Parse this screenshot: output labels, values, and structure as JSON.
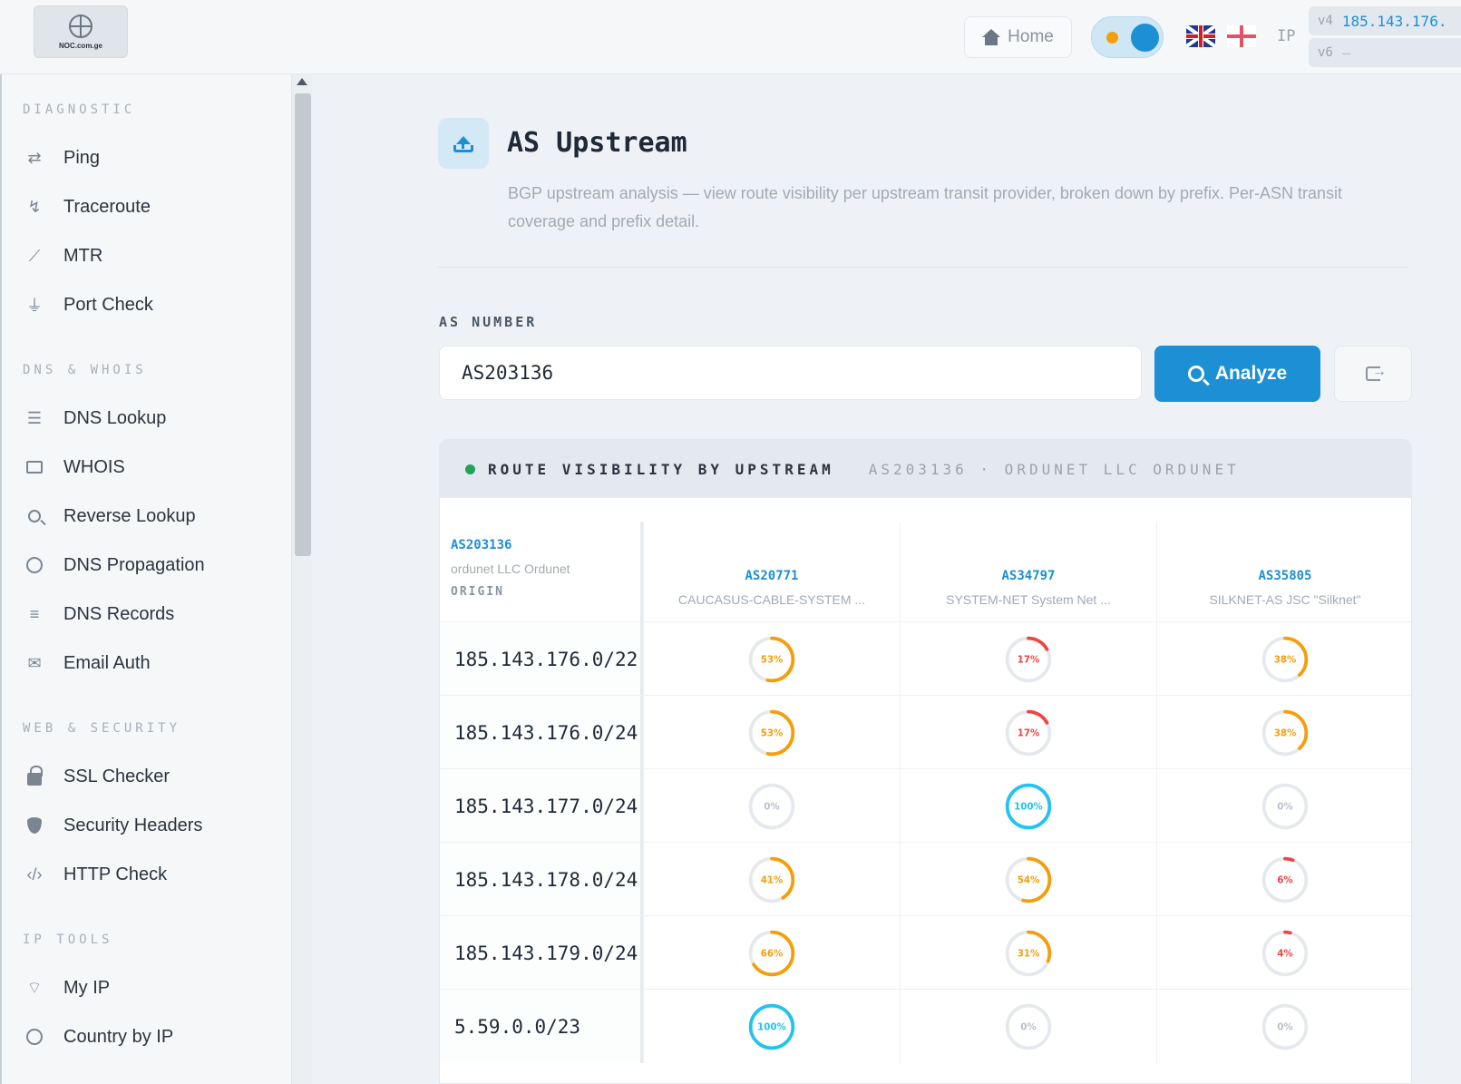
{
  "header": {
    "logo_text": "NOC.com.ge",
    "home_label": "Home",
    "ip_label": "IP",
    "ipv4_tag": "v4",
    "ipv4_value": "185.143.176.",
    "ipv6_tag": "v6",
    "ipv6_value": "—"
  },
  "sidebar": {
    "sections": [
      {
        "title": "DIAGNOSTIC",
        "items": [
          {
            "label": "Ping",
            "icon": "ping-icon"
          },
          {
            "label": "Traceroute",
            "icon": "traceroute-icon"
          },
          {
            "label": "MTR",
            "icon": "chart-line-icon"
          },
          {
            "label": "Port Check",
            "icon": "plug-icon"
          }
        ]
      },
      {
        "title": "DNS & WHOIS",
        "items": [
          {
            "label": "DNS Lookup",
            "icon": "server-icon"
          },
          {
            "label": "WHOIS",
            "icon": "id-card-icon"
          },
          {
            "label": "Reverse Lookup",
            "icon": "search-icon"
          },
          {
            "label": "DNS Propagation",
            "icon": "globe-icon"
          },
          {
            "label": "DNS Records",
            "icon": "list-icon"
          },
          {
            "label": "Email Auth",
            "icon": "envelope-icon"
          }
        ]
      },
      {
        "title": "WEB & SECURITY",
        "items": [
          {
            "label": "SSL Checker",
            "icon": "lock-icon"
          },
          {
            "label": "Security Headers",
            "icon": "shield-icon"
          },
          {
            "label": "HTTP Check",
            "icon": "code-icon"
          }
        ]
      },
      {
        "title": "IP TOOLS",
        "items": [
          {
            "label": "My IP",
            "icon": "wifi-icon"
          },
          {
            "label": "Country by IP",
            "icon": "globe-icon"
          }
        ]
      }
    ]
  },
  "main": {
    "title": "AS Upstream",
    "description": "BGP upstream analysis — view route visibility per upstream transit provider, broken down by prefix. Per-ASN transit coverage and prefix detail.",
    "field_label": "AS NUMBER",
    "as_value": "AS203136",
    "analyze_label": "Analyze"
  },
  "panel": {
    "title": "ROUTE VISIBILITY BY UPSTREAM",
    "subtitle": "AS203136 · ORDUNET LLC ORDUNET",
    "origin": {
      "asn": "AS203136",
      "name": "ordunet LLC Ordunet",
      "label": "ORIGIN"
    },
    "upstreams": [
      {
        "asn": "AS20771",
        "name": "CAUCASUS-CABLE-SYSTEM ..."
      },
      {
        "asn": "AS34797",
        "name": "SYSTEM-NET System Net ..."
      },
      {
        "asn": "AS35805",
        "name": "SILKNET-AS JSC \"Silknet\""
      }
    ],
    "rows": [
      {
        "prefix": "185.143.176.0/22",
        "values": [
          53,
          17,
          38
        ]
      },
      {
        "prefix": "185.143.176.0/24",
        "values": [
          53,
          17,
          38
        ]
      },
      {
        "prefix": "185.143.177.0/24",
        "values": [
          0,
          100,
          0
        ]
      },
      {
        "prefix": "185.143.178.0/24",
        "values": [
          41,
          54,
          6
        ]
      },
      {
        "prefix": "185.143.179.0/24",
        "values": [
          66,
          31,
          4
        ]
      },
      {
        "prefix": "5.59.0.0/23",
        "values": [
          100,
          0,
          0
        ]
      }
    ]
  },
  "colors": {
    "accent": "#1d8fd4",
    "high": "#22c3ee",
    "mid": "#f59e0b",
    "low": "#ef4444",
    "track": "#e5e9ed"
  }
}
